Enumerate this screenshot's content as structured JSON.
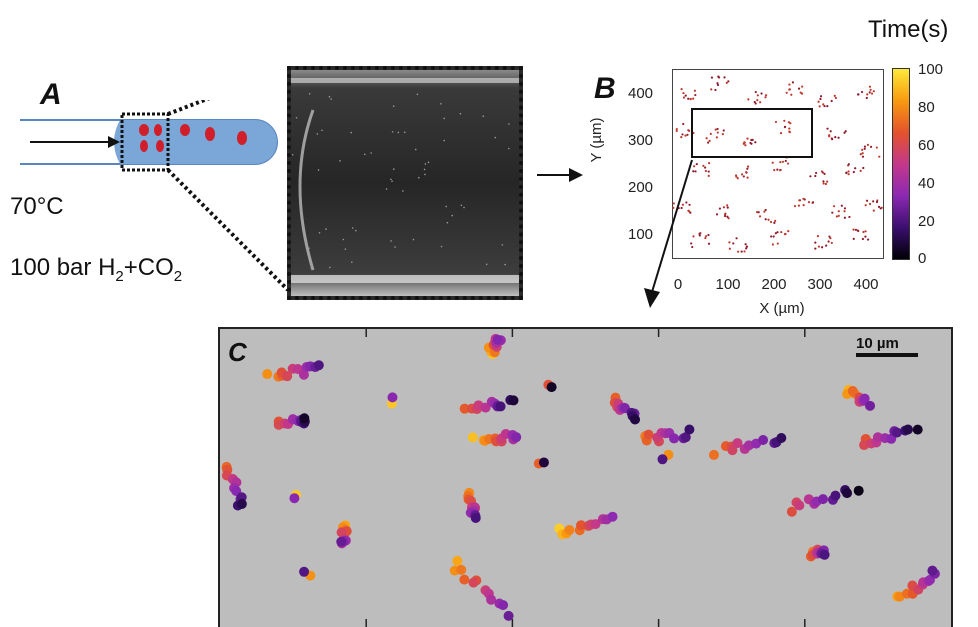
{
  "panel_a": {
    "letter": "A",
    "temperature": "70°C",
    "pressure_prefix": "100 bar H",
    "pressure_sub1": "2",
    "pressure_mid": "+CO",
    "pressure_sub2": "2"
  },
  "panel_b": {
    "letter": "B",
    "ylabel": "Y (µm)",
    "xlabel": "X (µm)",
    "yticks": [
      "400",
      "300",
      "200",
      "100"
    ],
    "xticks": [
      "0",
      "100",
      "200",
      "300",
      "400"
    ]
  },
  "colorbar": {
    "title": "Time(s)",
    "ticks": [
      "100",
      "80",
      "60",
      "40",
      "20",
      "0"
    ],
    "colors": [
      "#000004",
      "#3b0f70",
      "#8c29b2",
      "#c4388a",
      "#e3532c",
      "#f89a10",
      "#fce93a"
    ]
  },
  "panel_c": {
    "letter": "C",
    "scalebar": "10 µm",
    "background": "#bdbdbd"
  },
  "colors": {
    "capillary_fill": "#7aa6d8",
    "droplet": "#d01f2a"
  },
  "chart_data": {
    "type": "scatter",
    "title": "",
    "xlabel": "X (µm)",
    "ylabel": "Y (µm)",
    "xlim": [
      0,
      450
    ],
    "ylim": [
      50,
      450
    ],
    "colorbar_label": "Time(s)",
    "colorbar_range": [
      0,
      100
    ],
    "tracks_b": [
      {
        "x0": 40,
        "y0": 400
      },
      {
        "x0": 100,
        "y0": 420
      },
      {
        "x0": 180,
        "y0": 390
      },
      {
        "x0": 260,
        "y0": 410
      },
      {
        "x0": 330,
        "y0": 380
      },
      {
        "x0": 410,
        "y0": 400
      },
      {
        "x0": 30,
        "y0": 320
      },
      {
        "x0": 90,
        "y0": 310
      },
      {
        "x0": 170,
        "y0": 300
      },
      {
        "x0": 240,
        "y0": 330
      },
      {
        "x0": 350,
        "y0": 310
      },
      {
        "x0": 420,
        "y0": 280
      },
      {
        "x0": 60,
        "y0": 240
      },
      {
        "x0": 150,
        "y0": 230
      },
      {
        "x0": 230,
        "y0": 250
      },
      {
        "x0": 310,
        "y0": 220
      },
      {
        "x0": 390,
        "y0": 240
      },
      {
        "x0": 20,
        "y0": 160
      },
      {
        "x0": 110,
        "y0": 150
      },
      {
        "x0": 200,
        "y0": 140
      },
      {
        "x0": 280,
        "y0": 170
      },
      {
        "x0": 360,
        "y0": 150
      },
      {
        "x0": 430,
        "y0": 160
      },
      {
        "x0": 60,
        "y0": 90
      },
      {
        "x0": 140,
        "y0": 80
      },
      {
        "x0": 230,
        "y0": 95
      },
      {
        "x0": 320,
        "y0": 85
      },
      {
        "x0": 400,
        "y0": 100
      }
    ],
    "tracks_c": [
      {
        "x": 0.07,
        "y": 0.16,
        "dx": 0.07,
        "dy": -0.03
      },
      {
        "x": 0.08,
        "y": 0.31,
        "dx": 0.04,
        "dy": 0.0
      },
      {
        "x": 0.24,
        "y": 0.24,
        "dx": 0.0,
        "dy": 0.0
      },
      {
        "x": 0.37,
        "y": 0.08,
        "dx": 0.01,
        "dy": -0.05
      },
      {
        "x": 0.34,
        "y": 0.26,
        "dx": 0.06,
        "dy": -0.01
      },
      {
        "x": 0.35,
        "y": 0.37,
        "dx": 0.06,
        "dy": -0.01
      },
      {
        "x": 0.45,
        "y": 0.2,
        "dx": 0.0,
        "dy": 0.0
      },
      {
        "x": 0.54,
        "y": 0.24,
        "dx": 0.03,
        "dy": 0.06
      },
      {
        "x": 0.58,
        "y": 0.37,
        "dx": 0.06,
        "dy": -0.02
      },
      {
        "x": 0.61,
        "y": 0.43,
        "dx": 0.0,
        "dy": 0.0
      },
      {
        "x": 0.68,
        "y": 0.41,
        "dx": 0.09,
        "dy": -0.04
      },
      {
        "x": 0.86,
        "y": 0.21,
        "dx": 0.03,
        "dy": 0.04
      },
      {
        "x": 0.88,
        "y": 0.38,
        "dx": 0.07,
        "dy": -0.04
      },
      {
        "x": 0.01,
        "y": 0.47,
        "dx": 0.02,
        "dy": 0.12
      },
      {
        "x": 0.17,
        "y": 0.67,
        "dx": 0.0,
        "dy": 0.05
      },
      {
        "x": 0.34,
        "y": 0.56,
        "dx": 0.01,
        "dy": 0.08
      },
      {
        "x": 0.46,
        "y": 0.68,
        "dx": 0.08,
        "dy": -0.04
      },
      {
        "x": 0.78,
        "y": 0.6,
        "dx": 0.09,
        "dy": -0.06
      },
      {
        "x": 0.81,
        "y": 0.75,
        "dx": 0.02,
        "dy": 0.0
      },
      {
        "x": 0.32,
        "y": 0.79,
        "dx": 0.07,
        "dy": 0.16
      },
      {
        "x": 0.93,
        "y": 0.9,
        "dx": 0.05,
        "dy": -0.08
      },
      {
        "x": 0.1,
        "y": 0.56,
        "dx": 0.0,
        "dy": 0.0
      },
      {
        "x": 0.44,
        "y": 0.46,
        "dx": 0.0,
        "dy": 0.0
      },
      {
        "x": 0.12,
        "y": 0.82,
        "dx": 0.0,
        "dy": 0.0
      }
    ]
  }
}
